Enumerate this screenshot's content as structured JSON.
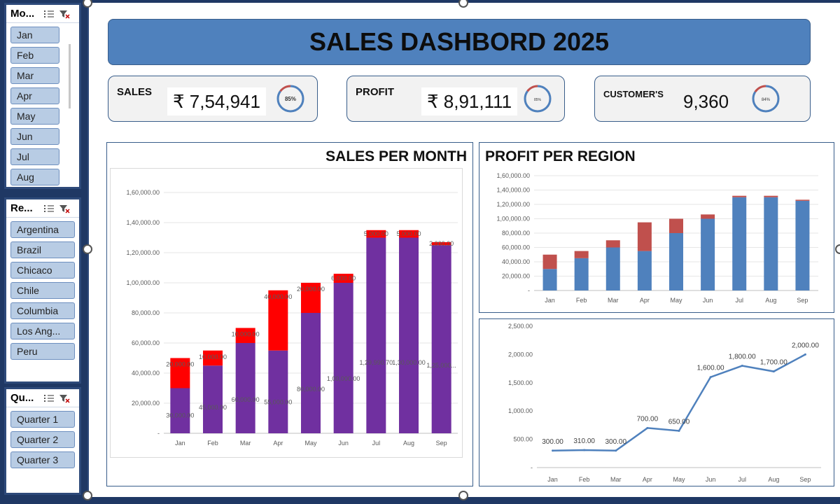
{
  "dashboard": {
    "title": "SALES DASHBORD 2025",
    "kpis": [
      {
        "label": "SALES",
        "value": "₹ 7,54,941",
        "ring_text": "85%",
        "ring_percent": 85
      },
      {
        "label": "PROFIT",
        "value": "₹ 8,91,111",
        "ring_text": "85%",
        "ring_percent": 85
      },
      {
        "label": "CUSTOMER'S",
        "value": "9,360",
        "ring_text": "84%",
        "ring_percent": 84
      }
    ]
  },
  "slicers": {
    "month": {
      "title": "Mo...",
      "items": [
        "Jan",
        "Feb",
        "Mar",
        "Apr",
        "May",
        "Jun",
        "Jul",
        "Aug"
      ]
    },
    "region": {
      "title": "Re...",
      "items": [
        "Argentina",
        "Brazil",
        "Chicaco",
        "Chile",
        "Columbia",
        "Los Ang...",
        "Peru"
      ]
    },
    "quarter": {
      "title": "Qu...",
      "items": [
        "Quarter 1",
        "Quarter 2",
        "Quarter 3"
      ]
    }
  },
  "chart_data": [
    {
      "type": "bar",
      "stacked": true,
      "title": "SALES PER MONTH",
      "categories": [
        "Jan",
        "Feb",
        "Mar",
        "Apr",
        "May",
        "Jun",
        "Jul",
        "Aug",
        "Sep"
      ],
      "series": [
        {
          "name": "base",
          "color": "#7030a0",
          "values": [
            30000,
            45000,
            60000,
            55000,
            80000,
            100000,
            129990.7,
            130000,
            125000
          ],
          "labels": [
            "30,000.00",
            "45,000.00",
            "60,000.00",
            "55,000.00",
            "80,000.00",
            "1,00,000.00",
            "1,29,990.70",
            "1,30,000.00",
            "1,25,000..."
          ]
        },
        {
          "name": "top",
          "color": "#ff0000",
          "values": [
            20000,
            10000,
            10000,
            40000,
            20000,
            6000,
            5000,
            5000,
            2000
          ],
          "labels": [
            "20,000.00",
            "10,000.00",
            "10,000.00",
            "40,000.00",
            "20,000.00",
            "6,000.00",
            "5,000.00",
            "5,000.00",
            "2,000.00"
          ]
        }
      ],
      "ylim": [
        0,
        160000
      ],
      "yticks": [
        "-",
        "20,000.00",
        "40,000.00",
        "60,000.00",
        "80,000.00",
        "1,00,000.00",
        "1,20,000.00",
        "1,40,000.00",
        "1,60,000.00"
      ],
      "grid": true
    },
    {
      "type": "bar",
      "stacked": true,
      "title": "PROFIT PER REGION",
      "categories": [
        "Jan",
        "Feb",
        "Mar",
        "Apr",
        "May",
        "Jun",
        "Jul",
        "Aug",
        "Sep"
      ],
      "series": [
        {
          "name": "base",
          "color": "#4f81bd",
          "values": [
            30000,
            45000,
            60000,
            55000,
            80000,
            100000,
            130000,
            130000,
            125000
          ]
        },
        {
          "name": "top",
          "color": "#c0504d",
          "values": [
            20000,
            10000,
            10000,
            40000,
            20000,
            6000,
            2000,
            2000,
            1500
          ]
        }
      ],
      "ylim": [
        0,
        160000
      ],
      "yticks": [
        "-",
        "20,000.00",
        "40,000.00",
        "60,000.00",
        "80,000.00",
        "1,00,000.00",
        "1,20,000.00",
        "1,40,000.00",
        "1,60,000.00"
      ],
      "grid": true
    },
    {
      "type": "line",
      "title": "",
      "categories": [
        "Jan",
        "Feb",
        "Mar",
        "Apr",
        "May",
        "Jun",
        "Jul",
        "Aug",
        "Sep"
      ],
      "values": [
        300,
        310,
        300,
        700,
        650,
        1600,
        1800,
        1700,
        2000
      ],
      "labels": [
        "300.00",
        "310.00",
        "300.00",
        "700.00",
        "650.00",
        "1,600.00",
        "1,800.00",
        "1,700.00",
        "2,000.00"
      ],
      "color": "#4f81bd",
      "ylim": [
        0,
        2500
      ],
      "yticks": [
        "-",
        "500.00",
        "1,000.00",
        "1,500.00",
        "2,000.00",
        "2,500.00"
      ],
      "grid": false
    }
  ]
}
